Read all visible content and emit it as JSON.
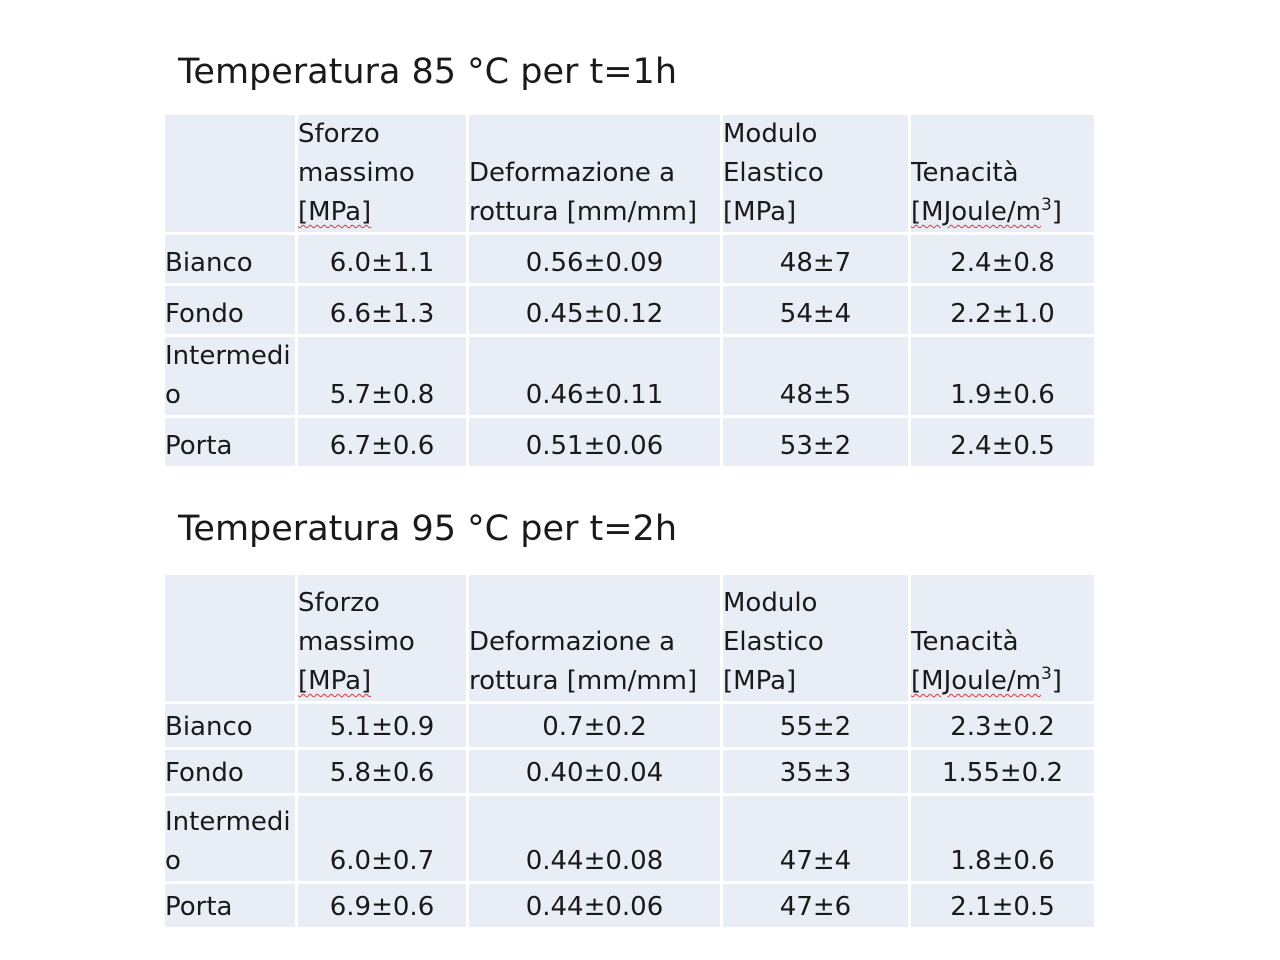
{
  "sections": [
    {
      "title": "Temperatura 85 °C per t=1h",
      "header": {
        "col1": [
          "Sforzo",
          "massimo",
          "[MPa]"
        ],
        "col2": [
          "Deformazione a",
          "rottura [mm/mm]"
        ],
        "col3": [
          "Modulo",
          "Elastico",
          "[MPa]"
        ],
        "col4": [
          "Tenacità",
          "[MJoule/m",
          "3",
          "]"
        ]
      },
      "rows": [
        {
          "label": [
            "Bianco"
          ],
          "values": [
            "6.0±1.1",
            "0.56±0.09",
            "48±7",
            "2.4±0.8"
          ]
        },
        {
          "label": [
            "Fondo"
          ],
          "values": [
            "6.6±1.3",
            "0.45±0.12",
            "54±4",
            "2.2±1.0"
          ]
        },
        {
          "label": [
            "Intermedi",
            "o"
          ],
          "values": [
            "5.7±0.8",
            "0.46±0.11",
            "48±5",
            "1.9±0.6"
          ]
        },
        {
          "label": [
            "Porta"
          ],
          "values": [
            "6.7±0.6",
            "0.51±0.06",
            "53±2",
            "2.4±0.5"
          ]
        }
      ]
    },
    {
      "title": "Temperatura 95 °C per t=2h",
      "header": {
        "col1": [
          "Sforzo",
          "massimo",
          "[MPa]"
        ],
        "col2": [
          "Deformazione a",
          "rottura [mm/mm]"
        ],
        "col3": [
          "Modulo",
          "Elastico",
          "[MPa]"
        ],
        "col4": [
          "Tenacità",
          "[MJoule/m",
          "3",
          "]"
        ]
      },
      "rows": [
        {
          "label": [
            "Bianco"
          ],
          "values": [
            "5.1±0.9",
            "0.7±0.2",
            "55±2",
            "2.3±0.2"
          ]
        },
        {
          "label": [
            "Fondo"
          ],
          "values": [
            "5.8±0.6",
            "0.40±0.04",
            "35±3",
            "1.55±0.2"
          ]
        },
        {
          "label": [
            "Intermedi",
            "o"
          ],
          "values": [
            "6.0±0.7",
            "0.44±0.08",
            "47±4",
            "1.8±0.6"
          ]
        },
        {
          "label": [
            "Porta"
          ],
          "values": [
            "6.9±0.6",
            "0.44±0.06",
            "47±6",
            "2.1±0.5"
          ]
        }
      ]
    }
  ],
  "colors": {
    "cell_background": "#e9edf5",
    "spellcheck_underline": "#d83a3a"
  }
}
